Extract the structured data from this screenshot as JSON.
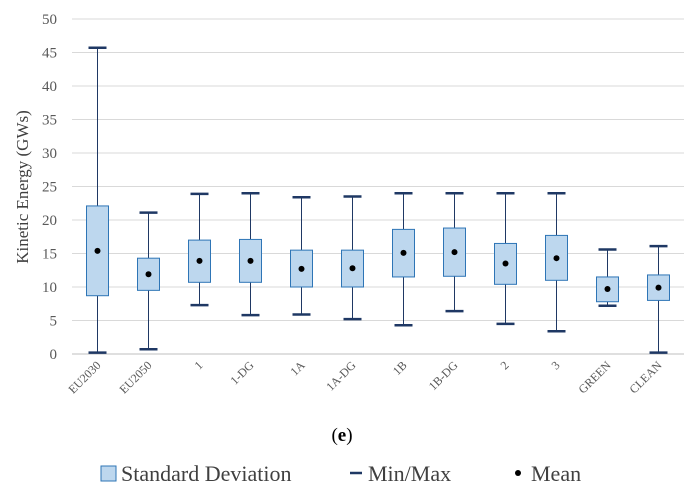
{
  "chart_data": {
    "type": "box",
    "ylabel": "Kinetic Energy (GWs)",
    "ylim": [
      0,
      50
    ],
    "yticks": [
      0,
      5,
      10,
      15,
      20,
      25,
      30,
      35,
      40,
      45,
      50
    ],
    "grid": "horizontal",
    "panel_label": "(e)",
    "panel_label_parts": {
      "open": "(",
      "letter": "e",
      "close": ")"
    },
    "legend": {
      "position": "bottom",
      "entries": [
        "Standard Deviation",
        "Min/Max",
        "Mean"
      ]
    },
    "categories": [
      "EU2030",
      "EU2050",
      "1",
      "1-DG",
      "1A",
      "1A-DG",
      "1B",
      "1B-DG",
      "2",
      "3",
      "GREEN",
      "CLEAN"
    ],
    "min": [
      0.2,
      0.7,
      7.3,
      5.8,
      5.9,
      5.2,
      4.3,
      6.4,
      4.5,
      3.4,
      7.2,
      0.2
    ],
    "max": [
      45.7,
      21.1,
      23.9,
      24.0,
      23.4,
      23.5,
      24.0,
      24.0,
      24.0,
      24.0,
      15.6,
      16.1
    ],
    "box_low": [
      8.7,
      9.5,
      10.7,
      10.7,
      10.0,
      10.0,
      11.5,
      11.6,
      10.4,
      11.0,
      7.8,
      8.0
    ],
    "box_high": [
      22.1,
      14.3,
      17.0,
      17.1,
      15.5,
      15.5,
      18.6,
      18.8,
      16.5,
      17.7,
      11.5,
      11.8
    ],
    "mean": [
      15.4,
      11.9,
      13.9,
      13.9,
      12.7,
      12.8,
      15.1,
      15.2,
      13.5,
      14.3,
      9.7,
      9.9
    ],
    "colors": {
      "box_fill": "#bdd7ee",
      "box_stroke": "#2e75b6",
      "whisker": "#1f3864",
      "mean": "#000000",
      "grid": "#d9d9d9",
      "axis": "#bfbfbf"
    }
  }
}
